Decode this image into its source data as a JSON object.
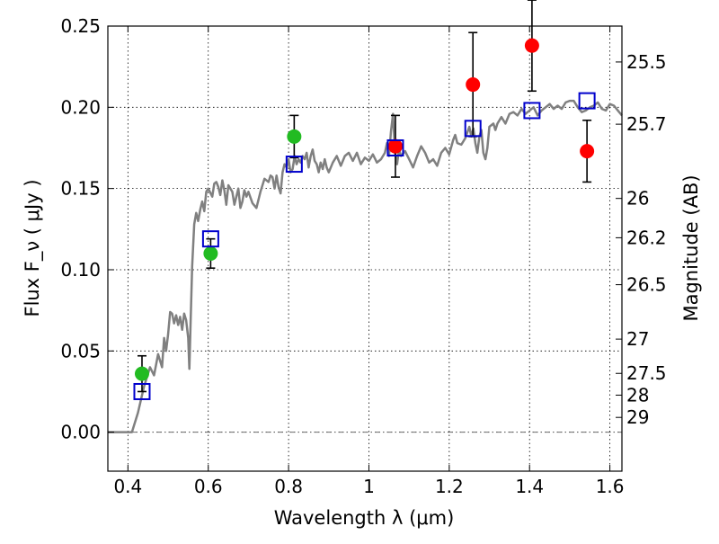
{
  "chart_data": {
    "type": "scatter",
    "title": "",
    "xlabel": "Wavelength  λ (μm)",
    "ylabel": "Flux  F_ν  ( μJy )",
    "ylabel_right": "Magnitude (AB)",
    "xlim": [
      0.35,
      1.63
    ],
    "ylim": [
      -0.024,
      0.25
    ],
    "grid": true,
    "x_ticks": [
      0.4,
      0.6,
      0.8,
      1.0,
      1.2,
      1.4,
      1.6
    ],
    "x_tick_labels": [
      "0.4",
      "0.6",
      "0.8",
      "1",
      "1.2",
      "1.4",
      "1.6"
    ],
    "y_ticks": [
      0.0,
      0.05,
      0.1,
      0.15,
      0.2,
      0.25
    ],
    "y_tick_labels": [
      "0.00",
      "0.05",
      "0.10",
      "0.15",
      "0.20",
      "0.25"
    ],
    "right_ticks": [
      {
        "label": "25.5",
        "flux": 0.2279
      },
      {
        "label": "25.7",
        "flux": 0.1896
      },
      {
        "label": "26",
        "flux": 0.1439
      },
      {
        "label": "26.2",
        "flux": 0.1197
      },
      {
        "label": "26.5",
        "flux": 0.0908
      },
      {
        "label": "27",
        "flux": 0.0573
      },
      {
        "label": "27.5",
        "flux": 0.0362
      },
      {
        "label": "28",
        "flux": 0.0228
      },
      {
        "label": "29",
        "flux": 0.0091
      }
    ],
    "series": [
      {
        "marker": "circle",
        "color": "#22bb22",
        "points": [
          {
            "x": 0.435,
            "y": 0.036,
            "err": 0.011
          },
          {
            "x": 0.606,
            "y": 0.11,
            "err": 0.009
          },
          {
            "x": 0.814,
            "y": 0.182,
            "err": 0.013
          }
        ]
      },
      {
        "marker": "circle",
        "color": "#ff0000",
        "points": [
          {
            "x": 1.066,
            "y": 0.176,
            "err": 0.019
          },
          {
            "x": 1.259,
            "y": 0.214,
            "err": 0.032
          },
          {
            "x": 1.406,
            "y": 0.238,
            "err": 0.028
          },
          {
            "x": 1.543,
            "y": 0.173,
            "err": 0.019
          }
        ]
      },
      {
        "marker": "square",
        "color": "#0000cc",
        "points": [
          {
            "x": 0.435,
            "y": 0.025
          },
          {
            "x": 0.606,
            "y": 0.119
          },
          {
            "x": 0.814,
            "y": 0.165
          },
          {
            "x": 1.066,
            "y": 0.175
          },
          {
            "x": 1.259,
            "y": 0.187
          },
          {
            "x": 1.406,
            "y": 0.198
          },
          {
            "x": 1.543,
            "y": 0.204
          }
        ]
      },
      {
        "type": "line",
        "color": "#808080",
        "points": [
          [
            0.35,
            0.0
          ],
          [
            0.41,
            0.0
          ],
          [
            0.425,
            0.012
          ],
          [
            0.44,
            0.028
          ],
          [
            0.455,
            0.04
          ],
          [
            0.465,
            0.035
          ],
          [
            0.475,
            0.048
          ],
          [
            0.485,
            0.04
          ],
          [
            0.49,
            0.058
          ],
          [
            0.495,
            0.05
          ],
          [
            0.5,
            0.06
          ],
          [
            0.505,
            0.074
          ],
          [
            0.51,
            0.073
          ],
          [
            0.515,
            0.067
          ],
          [
            0.52,
            0.072
          ],
          [
            0.525,
            0.066
          ],
          [
            0.53,
            0.071
          ],
          [
            0.535,
            0.063
          ],
          [
            0.54,
            0.073
          ],
          [
            0.545,
            0.069
          ],
          [
            0.55,
            0.058
          ],
          [
            0.553,
            0.039
          ],
          [
            0.556,
            0.068
          ],
          [
            0.56,
            0.102
          ],
          [
            0.565,
            0.128
          ],
          [
            0.57,
            0.135
          ],
          [
            0.575,
            0.13
          ],
          [
            0.58,
            0.137
          ],
          [
            0.585,
            0.142
          ],
          [
            0.59,
            0.136
          ],
          [
            0.595,
            0.148
          ],
          [
            0.6,
            0.15
          ],
          [
            0.61,
            0.145
          ],
          [
            0.615,
            0.153
          ],
          [
            0.62,
            0.154
          ],
          [
            0.625,
            0.151
          ],
          [
            0.63,
            0.146
          ],
          [
            0.635,
            0.155
          ],
          [
            0.64,
            0.149
          ],
          [
            0.645,
            0.14
          ],
          [
            0.65,
            0.152
          ],
          [
            0.655,
            0.15
          ],
          [
            0.66,
            0.148
          ],
          [
            0.665,
            0.14
          ],
          [
            0.67,
            0.145
          ],
          [
            0.675,
            0.15
          ],
          [
            0.68,
            0.138
          ],
          [
            0.685,
            0.142
          ],
          [
            0.69,
            0.149
          ],
          [
            0.695,
            0.145
          ],
          [
            0.7,
            0.148
          ],
          [
            0.71,
            0.141
          ],
          [
            0.72,
            0.138
          ],
          [
            0.73,
            0.148
          ],
          [
            0.74,
            0.156
          ],
          [
            0.75,
            0.154
          ],
          [
            0.755,
            0.158
          ],
          [
            0.76,
            0.157
          ],
          [
            0.765,
            0.15
          ],
          [
            0.77,
            0.158
          ],
          [
            0.775,
            0.151
          ],
          [
            0.78,
            0.147
          ],
          [
            0.785,
            0.16
          ],
          [
            0.79,
            0.165
          ],
          [
            0.795,
            0.163
          ],
          [
            0.8,
            0.168
          ],
          [
            0.805,
            0.16
          ],
          [
            0.81,
            0.162
          ],
          [
            0.815,
            0.17
          ],
          [
            0.82,
            0.165
          ],
          [
            0.825,
            0.168
          ],
          [
            0.83,
            0.166
          ],
          [
            0.835,
            0.17
          ],
          [
            0.84,
            0.168
          ],
          [
            0.845,
            0.172
          ],
          [
            0.85,
            0.163
          ],
          [
            0.855,
            0.17
          ],
          [
            0.86,
            0.174
          ],
          [
            0.865,
            0.167
          ],
          [
            0.87,
            0.165
          ],
          [
            0.875,
            0.16
          ],
          [
            0.88,
            0.166
          ],
          [
            0.885,
            0.162
          ],
          [
            0.89,
            0.168
          ],
          [
            0.895,
            0.163
          ],
          [
            0.9,
            0.16
          ],
          [
            0.91,
            0.166
          ],
          [
            0.92,
            0.17
          ],
          [
            0.93,
            0.164
          ],
          [
            0.94,
            0.17
          ],
          [
            0.95,
            0.172
          ],
          [
            0.96,
            0.167
          ],
          [
            0.97,
            0.172
          ],
          [
            0.98,
            0.165
          ],
          [
            0.99,
            0.169
          ],
          [
            1.0,
            0.167
          ],
          [
            1.01,
            0.171
          ],
          [
            1.02,
            0.166
          ],
          [
            1.03,
            0.168
          ],
          [
            1.04,
            0.172
          ],
          [
            1.045,
            0.178
          ],
          [
            1.05,
            0.17
          ],
          [
            1.055,
            0.185
          ],
          [
            1.06,
            0.196
          ],
          [
            1.065,
            0.172
          ],
          [
            1.07,
            0.165
          ],
          [
            1.075,
            0.174
          ],
          [
            1.08,
            0.17
          ],
          [
            1.09,
            0.173
          ],
          [
            1.1,
            0.168
          ],
          [
            1.11,
            0.163
          ],
          [
            1.12,
            0.17
          ],
          [
            1.13,
            0.176
          ],
          [
            1.14,
            0.172
          ],
          [
            1.15,
            0.166
          ],
          [
            1.16,
            0.168
          ],
          [
            1.17,
            0.164
          ],
          [
            1.18,
            0.172
          ],
          [
            1.19,
            0.175
          ],
          [
            1.2,
            0.171
          ],
          [
            1.21,
            0.18
          ],
          [
            1.215,
            0.183
          ],
          [
            1.22,
            0.178
          ],
          [
            1.23,
            0.177
          ],
          [
            1.24,
            0.181
          ],
          [
            1.25,
            0.188
          ],
          [
            1.255,
            0.182
          ],
          [
            1.26,
            0.187
          ],
          [
            1.265,
            0.178
          ],
          [
            1.27,
            0.172
          ],
          [
            1.275,
            0.182
          ],
          [
            1.28,
            0.186
          ],
          [
            1.285,
            0.172
          ],
          [
            1.29,
            0.168
          ],
          [
            1.295,
            0.175
          ],
          [
            1.3,
            0.188
          ],
          [
            1.31,
            0.19
          ],
          [
            1.315,
            0.186
          ],
          [
            1.32,
            0.19
          ],
          [
            1.33,
            0.194
          ],
          [
            1.34,
            0.19
          ],
          [
            1.35,
            0.196
          ],
          [
            1.36,
            0.197
          ],
          [
            1.37,
            0.195
          ],
          [
            1.38,
            0.199
          ],
          [
            1.39,
            0.196
          ],
          [
            1.4,
            0.198
          ],
          [
            1.41,
            0.2
          ],
          [
            1.42,
            0.195
          ],
          [
            1.43,
            0.198
          ],
          [
            1.44,
            0.2
          ],
          [
            1.45,
            0.202
          ],
          [
            1.46,
            0.199
          ],
          [
            1.47,
            0.201
          ],
          [
            1.48,
            0.199
          ],
          [
            1.49,
            0.203
          ],
          [
            1.5,
            0.204
          ],
          [
            1.51,
            0.204
          ],
          [
            1.52,
            0.2
          ],
          [
            1.53,
            0.197
          ],
          [
            1.54,
            0.198
          ],
          [
            1.55,
            0.2
          ],
          [
            1.56,
            0.201
          ],
          [
            1.57,
            0.203
          ],
          [
            1.58,
            0.199
          ],
          [
            1.59,
            0.198
          ],
          [
            1.6,
            0.202
          ],
          [
            1.61,
            0.201
          ],
          [
            1.62,
            0.198
          ],
          [
            1.63,
            0.195
          ]
        ]
      }
    ]
  }
}
